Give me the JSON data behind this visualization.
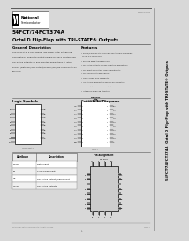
{
  "bg_color": "#d8d8d8",
  "page_bg": "#f5f5f5",
  "title_line1": "54FCT/74FCT374A",
  "title_line2": "Octal D Flip-Flop with TRI-STATE® Outputs",
  "company": "National",
  "company_sub": "Semiconductor",
  "section_general": "General Description",
  "section_features": "Features",
  "section_logic": "Logic Symbols",
  "section_connection": "Connection Diagrams",
  "general_text": [
    "The 8C374A is a high-speed, low-power octal D type flip-",
    "flop featuring separate Output enable for each function and",
    "TRI-STATE outputs for bus-oriented applications. A latch",
    "enable (Data OE) and Output/Enable (OE) are common to all",
    "flip-flops."
  ],
  "features_text": [
    "• DM54/74FCT374As is pin and functionally equivalent",
    "  to IDT 54-74FCT374A",
    "• Positive edge-triggered clock",
    "• TRI-STATE outputs for bus-oriented applications",
    "• TTL input and output level compatibility",
    "• TTL-equivalent CMOS levels",
    "• High current sink capability",
    "• ICC  All DC-terminated and for bus parasitry",
    "• Electrostatic discharge protection > 2 kV",
    "• Internally balanced structure"
  ],
  "side_text": "54FCT/74FCT374A  Octal D Flip-Flop with TRI-STATE® Outputs",
  "doc_number": "MM74 10000",
  "table_headers": [
    "Attribute",
    "Description"
  ],
  "table_rows": [
    [
      "Dn-Dn",
      "Data Inputs"
    ],
    [
      "CP",
      "Clock Pulse Input"
    ],
    [
      "OE",
      "TRI-STATE Output/Enable Input"
    ],
    [
      "Qn-Qn",
      "TRI-STATE Outputs"
    ]
  ],
  "pin_assign_label": "Pin Assignment",
  "for_soic": "for SOIC",
  "for_dip": "for DIP Package and SOIC"
}
